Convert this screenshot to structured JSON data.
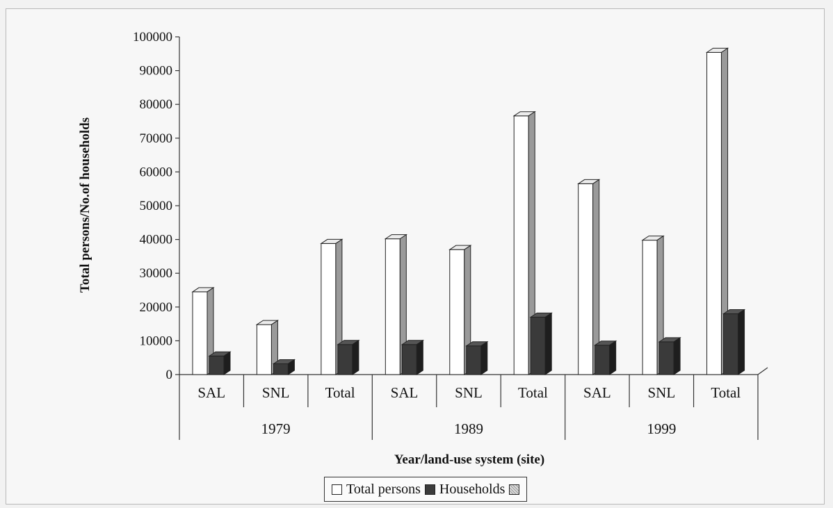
{
  "chart_data": {
    "type": "bar",
    "style": "3d-column",
    "title": "",
    "ylabel": "Total persons/No.of households",
    "xlabel": "Year/land-use system (site)",
    "ylim": [
      0,
      100000
    ],
    "yticks": [
      0,
      10000,
      20000,
      30000,
      40000,
      50000,
      60000,
      70000,
      80000,
      90000,
      100000
    ],
    "ytick_labels": [
      "0",
      "10000",
      "20000",
      "30000",
      "40000",
      "50000",
      "60000",
      "70000",
      "80000",
      "90000",
      "100000"
    ],
    "groups": [
      {
        "label": "1979",
        "categories": [
          "SAL",
          "SNL",
          "Total"
        ]
      },
      {
        "label": "1989",
        "categories": [
          "SAL",
          "SNL",
          "Total"
        ]
      },
      {
        "label": "1999",
        "categories": [
          "SAL",
          "SNL",
          "Total"
        ]
      }
    ],
    "series": [
      {
        "name": "Total persons",
        "color": "#ffffff",
        "values": [
          24500,
          14800,
          38800,
          40200,
          37000,
          76600,
          56500,
          39800,
          95400
        ]
      },
      {
        "name": "Households",
        "color": "#3a3a3a",
        "values": [
          5500,
          3200,
          8900,
          8900,
          8500,
          17000,
          8700,
          9700,
          18000
        ]
      }
    ],
    "legend": {
      "position": "bottom",
      "entries": [
        "Total persons",
        "Households",
        ""
      ]
    },
    "grid": false
  }
}
